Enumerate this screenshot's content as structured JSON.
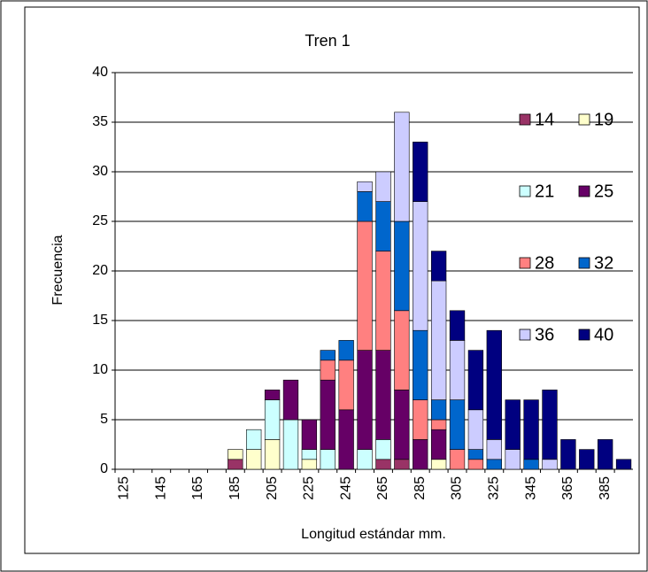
{
  "chart_data": {
    "type": "stacked_bar",
    "title": "Tren 1",
    "x_label": "Longitud estándar mm.",
    "y_label": "Frecuencia",
    "categories": [
      "125",
      null,
      "145",
      null,
      "165",
      null,
      "185",
      null,
      "205",
      null,
      "225",
      null,
      "245",
      null,
      "265",
      null,
      "285",
      null,
      "305",
      null,
      "325",
      null,
      "345",
      null,
      "365",
      null,
      "385",
      null
    ],
    "series": [
      {
        "name": "14",
        "color": "#993366",
        "values": [
          0,
          0,
          0,
          0,
          0,
          0,
          1,
          0,
          0,
          0,
          0,
          0,
          0,
          0,
          1,
          1,
          0,
          0,
          0,
          0,
          0,
          0,
          0,
          0,
          0,
          0,
          0,
          0
        ]
      },
      {
        "name": "19",
        "color": "#FFFFCC",
        "values": [
          0,
          0,
          0,
          0,
          0,
          0,
          1,
          2,
          3,
          0,
          1,
          0,
          0,
          0,
          0,
          0,
          0,
          1,
          0,
          0,
          0,
          0,
          0,
          0,
          0,
          0,
          0,
          0
        ]
      },
      {
        "name": "21",
        "color": "#CCFFFF",
        "values": [
          0,
          0,
          0,
          0,
          0,
          0,
          0,
          2,
          4,
          5,
          1,
          2,
          0,
          2,
          2,
          0,
          0,
          0,
          0,
          0,
          0,
          0,
          0,
          0,
          0,
          0,
          0,
          0
        ]
      },
      {
        "name": "25",
        "color": "#660066",
        "values": [
          0,
          0,
          0,
          0,
          0,
          0,
          0,
          0,
          1,
          4,
          3,
          7,
          6,
          10,
          9,
          7,
          3,
          3,
          0,
          0,
          0,
          0,
          0,
          0,
          0,
          0,
          0,
          0
        ]
      },
      {
        "name": "28",
        "color": "#FF8080",
        "values": [
          0,
          0,
          0,
          0,
          0,
          0,
          0,
          0,
          0,
          0,
          0,
          2,
          5,
          13,
          10,
          8,
          4,
          1,
          2,
          1,
          0,
          0,
          0,
          0,
          0,
          0,
          0,
          0
        ]
      },
      {
        "name": "32",
        "color": "#0066CC",
        "values": [
          0,
          0,
          0,
          0,
          0,
          0,
          0,
          0,
          0,
          0,
          0,
          1,
          2,
          3,
          5,
          9,
          7,
          2,
          5,
          1,
          1,
          0,
          1,
          0,
          0,
          0,
          0,
          0
        ]
      },
      {
        "name": "36",
        "color": "#CCCCFF",
        "values": [
          0,
          0,
          0,
          0,
          0,
          0,
          0,
          0,
          0,
          0,
          0,
          0,
          0,
          1,
          3,
          11,
          13,
          12,
          6,
          4,
          2,
          2,
          0,
          1,
          0,
          0,
          0,
          0
        ]
      },
      {
        "name": "40",
        "color": "#000080",
        "values": [
          0,
          0,
          0,
          0,
          0,
          0,
          0,
          0,
          0,
          0,
          0,
          0,
          0,
          0,
          0,
          0,
          6,
          3,
          3,
          6,
          11,
          5,
          6,
          7,
          3,
          2,
          3,
          1
        ]
      }
    ],
    "ylim": [
      0,
      40
    ],
    "yticks": [
      0,
      5,
      10,
      15,
      20,
      25,
      30,
      35,
      40
    ],
    "grid": true,
    "legend": "right"
  }
}
